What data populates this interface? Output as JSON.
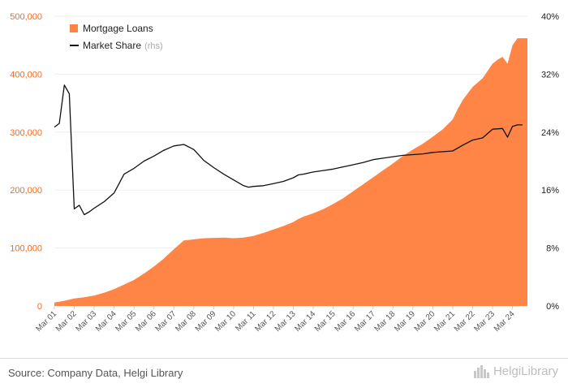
{
  "chart_data": {
    "type": "area",
    "x_tick_labels": [
      "Mar 01",
      "Mar 02",
      "Mar 03",
      "Mar 04",
      "Mar 05",
      "Mar 06",
      "Mar 07",
      "Mar 08",
      "Mar 09",
      "Mar 10",
      "Mar 11",
      "Mar 12",
      "Mar 13",
      "Mar 14",
      "Mar 15",
      "Mar 16",
      "Mar 17",
      "Mar 18",
      "Mar 19",
      "Mar 20",
      "Mar 21",
      "Mar 22",
      "Mar 23",
      "Mar 24"
    ],
    "x_start": 2001.0,
    "x_end": 2024.75,
    "y_left": {
      "min": 0,
      "max": 500000,
      "ticks": [
        "0",
        "100,000",
        "200,000",
        "300,000",
        "400,000",
        "500,000"
      ],
      "tick_values": [
        0,
        100000,
        200000,
        300000,
        400000,
        500000
      ]
    },
    "y_right": {
      "min": 0,
      "max": 40,
      "ticks": [
        "0%",
        "8%",
        "16%",
        "24%",
        "32%",
        "40%"
      ],
      "tick_values": [
        0,
        8,
        16,
        24,
        32,
        40
      ]
    },
    "grid": true,
    "legend_position": "top-left",
    "series": [
      {
        "name": "Mortgage Loans",
        "kind": "area",
        "axis": "left",
        "color": "#ff8547",
        "x": [
          2001.0,
          2001.5,
          2002.0,
          2002.5,
          2003.0,
          2003.5,
          2004.0,
          2004.5,
          2005.0,
          2005.5,
          2006.0,
          2006.5,
          2007.0,
          2007.5,
          2007.75,
          2008.0,
          2008.5,
          2009.0,
          2009.5,
          2010.0,
          2010.5,
          2011.0,
          2011.5,
          2012.0,
          2012.5,
          2013.0,
          2013.25,
          2013.5,
          2013.75,
          2014.0,
          2014.5,
          2015.0,
          2015.5,
          2016.0,
          2016.5,
          2017.0,
          2017.5,
          2018.0,
          2018.5,
          2019.0,
          2019.5,
          2020.0,
          2020.5,
          2021.0,
          2021.25,
          2021.5,
          2021.75,
          2022.0,
          2022.5,
          2023.0,
          2023.25,
          2023.5,
          2023.75,
          2024.0,
          2024.25,
          2024.5,
          2024.75
        ],
        "values": [
          6000,
          9000,
          13000,
          15000,
          18000,
          23000,
          29000,
          37000,
          45000,
          56000,
          68000,
          82000,
          98000,
          113000,
          114000,
          115000,
          117000,
          117500,
          118000,
          117000,
          118000,
          121000,
          126000,
          132000,
          138000,
          145000,
          150000,
          154000,
          157000,
          160000,
          167000,
          176000,
          186000,
          198000,
          210000,
          222000,
          234000,
          246000,
          259000,
          270000,
          280000,
          292000,
          305000,
          322000,
          340000,
          355000,
          367000,
          378000,
          393000,
          418000,
          425000,
          430000,
          418000,
          450000,
          462000,
          462000,
          462000
        ]
      },
      {
        "name": "Market Share",
        "name_note": "(rhs)",
        "kind": "line",
        "axis": "right",
        "color": "#111111",
        "x": [
          2001.0,
          2001.25,
          2001.5,
          2001.75,
          2002.0,
          2002.25,
          2002.5,
          2002.75,
          2003.0,
          2003.5,
          2004.0,
          2004.5,
          2005.0,
          2005.5,
          2006.0,
          2006.5,
          2007.0,
          2007.5,
          2008.0,
          2008.5,
          2009.0,
          2009.5,
          2010.0,
          2010.5,
          2010.75,
          2011.0,
          2011.5,
          2012.0,
          2012.5,
          2013.0,
          2013.25,
          2013.5,
          2014.0,
          2014.5,
          2015.0,
          2015.5,
          2016.0,
          2016.5,
          2017.0,
          2017.5,
          2018.0,
          2018.5,
          2019.0,
          2019.5,
          2020.0,
          2020.5,
          2021.0,
          2021.5,
          2022.0,
          2022.5,
          2023.0,
          2023.5,
          2023.75,
          2024.0,
          2024.25,
          2024.5
        ],
        "values": [
          24.7,
          25.2,
          30.5,
          29.3,
          13.4,
          13.9,
          12.6,
          13.0,
          13.5,
          14.4,
          15.6,
          18.2,
          19.0,
          20.0,
          20.7,
          21.5,
          22.1,
          22.3,
          21.6,
          20.1,
          19.1,
          18.2,
          17.4,
          16.6,
          16.4,
          16.5,
          16.6,
          16.9,
          17.2,
          17.7,
          18.1,
          18.2,
          18.5,
          18.7,
          18.9,
          19.2,
          19.5,
          19.8,
          20.2,
          20.4,
          20.6,
          20.8,
          20.9,
          21.0,
          21.2,
          21.3,
          21.4,
          22.2,
          22.9,
          23.2,
          24.4,
          24.5,
          23.3,
          24.8,
          25.0,
          25.0
        ]
      }
    ]
  },
  "footer": {
    "source": "Source: Company Data, Helgi Library",
    "brand": "HelgiLibrary"
  }
}
